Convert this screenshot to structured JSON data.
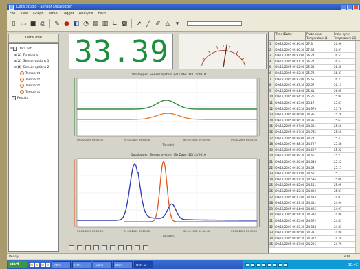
{
  "window": {
    "title": "Data Studio - Sensor Datalogger"
  },
  "menu": [
    "File",
    "View",
    "Graph",
    "Table",
    "Logger",
    "Analysis",
    "Help"
  ],
  "left_panel": {
    "header": "Data Tree",
    "tree": [
      "Data set",
      "Functions",
      "Sensor options 1",
      "Sensor options 2",
      "Temperat",
      "Temperat",
      "Temperat",
      "Temperat",
      "Results"
    ]
  },
  "digital_display": {
    "value": "33.39",
    "color": "#1c8f3b"
  },
  "meter": {
    "level": 0.55
  },
  "graph1": {
    "caption": "Datalogger: Sensor system (2)     Date: 10/12/2010",
    "xlabel": "Time(hr)",
    "ticks": [
      "09:10:2005 09:00:00",
      "09:10:2005 09:15:00",
      "09:10:2005 09:30:00",
      "09:10:2005 09:45:00"
    ],
    "series": [
      {
        "color": "#2b8a3b"
      },
      {
        "color": "#e0701a"
      }
    ]
  },
  "graph2": {
    "caption": "Datalogger: Sensor system (3)     Date: 10/12/2010",
    "xlabel": "Time(hr)",
    "ticks": [
      "09:10:2005 09:00:00",
      "09:10:2005 09:15:00",
      "09:10:2005 09:30:00",
      "09:10:2005 09:45:00"
    ],
    "series": [
      {
        "color": "#2f3fb0"
      },
      {
        "color": "#e0541c"
      }
    ]
  },
  "table": {
    "headers": [
      "",
      "Time (Date)",
      "Probe sync: Temperature (1)",
      "Probe sync: Temperature (2)"
    ],
    "rows": [
      [
        "1",
        "09/12/2005 09:30:00",
        "27.3",
        "26.90"
      ],
      [
        "2",
        "09/12/2005 09:30:30",
        "27.34",
        "26.91"
      ],
      [
        "3",
        "09/12/2005 09:31:00",
        "26.241",
        "26.53"
      ],
      [
        "4",
        "09/12/2005 09:31:30",
        "26.24",
        "26.52"
      ],
      [
        "5",
        "09/12/2005 09:32:00",
        "25.88",
        "26.40"
      ],
      [
        "6",
        "09/12/2005 09:32:30",
        "25.78",
        "26.31"
      ],
      [
        "7",
        "09/12/2005 09:33:00",
        "25.65",
        "26.21"
      ],
      [
        "8",
        "09/12/2005 09:33:30",
        "25.57",
        "26.13"
      ],
      [
        "9",
        "09/12/2005 09:34:00",
        "25.41",
        "26.05"
      ],
      [
        "10",
        "09/12/2005 09:34:30",
        "25.26",
        "25.94"
      ],
      [
        "11",
        "09/12/2005 09:35:00",
        "25.17",
        "25.87"
      ],
      [
        "12",
        "09/12/2005 09:35:30",
        "24.973",
        "25.78"
      ],
      [
        "13",
        "09/12/2005 09:36:00",
        "24.961",
        "25.70"
      ],
      [
        "14",
        "09/12/2005 09:36:30",
        "24.951",
        "25.63"
      ],
      [
        "15",
        "09/12/2005 09:37:00",
        "24.861",
        "25.56"
      ],
      [
        "16",
        "09/12/2005 09:37:30",
        "24.745",
        "25.50"
      ],
      [
        "17",
        "09/12/2005 09:38:00",
        "24.74",
        "25.43"
      ],
      [
        "18",
        "09/12/2005 09:38:30",
        "24.727",
        "25.38"
      ],
      [
        "19",
        "09/12/2005 09:39:00",
        "24.697",
        "25.32"
      ],
      [
        "20",
        "09/12/2005 09:39:30",
        "24.66",
        "25.27"
      ],
      [
        "21",
        "09/12/2005 09:40:00",
        "24.633",
        "25.22"
      ],
      [
        "22",
        "09/12/2005 09:40:30",
        "24.63",
        "25.17"
      ],
      [
        "23",
        "09/12/2005 09:41:00",
        "24.601",
        "25.13"
      ],
      [
        "24",
        "09/12/2005 09:41:30",
        "24.536",
        "25.09"
      ],
      [
        "25",
        "09/12/2005 09:42:00",
        "24.531",
        "25.05"
      ],
      [
        "26",
        "09/12/2005 09:42:30",
        "24.492",
        "25.01"
      ],
      [
        "27",
        "09/12/2005 09:43:00",
        "24.474",
        "24.97"
      ],
      [
        "28",
        "09/12/2005 09:43:30",
        "24.441",
        "24.94"
      ],
      [
        "29",
        "09/12/2005 09:44:00",
        "24.425",
        "24.91"
      ],
      [
        "30",
        "09/12/2005 09:44:30",
        "24.392",
        "24.88"
      ],
      [
        "31",
        "09/12/2005 09:45:00",
        "24.372",
        "24.85"
      ],
      [
        "32",
        "09/12/2005 09:45:30",
        "24.354",
        "24.83"
      ],
      [
        "33",
        "09/12/2005 09:46:00",
        "24.33",
        "24.80"
      ],
      [
        "34",
        "09/12/2005 09:46:30",
        "24.312",
        "24.78"
      ],
      [
        "35",
        "09/12/2005 09:47:00",
        "24.295",
        "24.76"
      ]
    ]
  },
  "status": {
    "left": "Ready",
    "right": "NUM"
  },
  "taskbar": {
    "start": "start",
    "tasks": [
      "Inbox",
      "Data...",
      "Graph...",
      "Word...",
      "Data St..."
    ],
    "clock": "10:42"
  }
}
